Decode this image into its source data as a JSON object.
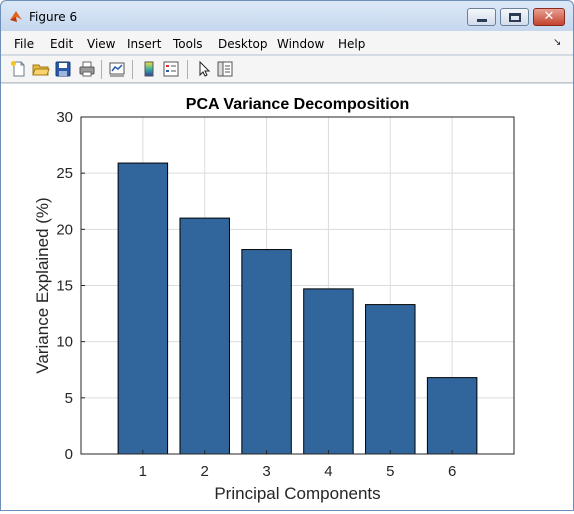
{
  "window": {
    "title": "Figure 6",
    "minimize_symbol": "minimize",
    "maximize_symbol": "maximize",
    "close_symbol": "✕"
  },
  "menu": {
    "items": [
      "File",
      "Edit",
      "View",
      "Insert",
      "Tools",
      "Desktop",
      "Window",
      "Help"
    ],
    "overflow_symbol": "↘"
  },
  "toolbar": {
    "icons": [
      "new-figure-icon",
      "open-file-icon",
      "save-icon",
      "print-icon",
      "link-plot-icon",
      "insert-colorbar-icon",
      "insert-legend-icon",
      "pointer-icon",
      "property-inspector-icon"
    ]
  },
  "chart_data": {
    "type": "bar",
    "title": "PCA Variance Decomposition",
    "xlabel": "Principal Components",
    "ylabel": "Variance Explained (%)",
    "categories": [
      "1",
      "2",
      "3",
      "4",
      "5",
      "6"
    ],
    "values": [
      25.9,
      21.0,
      18.2,
      14.7,
      13.3,
      6.8
    ],
    "ylim": [
      0,
      30
    ],
    "xlim": [
      0,
      7
    ],
    "yticks": [
      0,
      5,
      10,
      15,
      20,
      25,
      30
    ],
    "grid": true,
    "bar_color": "#31669c"
  }
}
